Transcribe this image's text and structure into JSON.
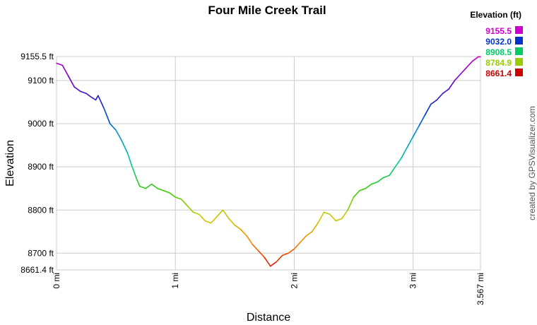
{
  "chart_data": {
    "type": "line",
    "title": "Four Mile Creek Trail",
    "xlabel": "Distance",
    "ylabel": "Elevation",
    "xlim": [
      0,
      3.567
    ],
    "ylim": [
      8661.4,
      9155.5
    ],
    "x_ticks": [
      {
        "value": 0,
        "label": "0 mi"
      },
      {
        "value": 1,
        "label": "1 mi"
      },
      {
        "value": 2,
        "label": "2 mi"
      },
      {
        "value": 3,
        "label": "3 mi"
      },
      {
        "value": 3.567,
        "label": "3.567 mi"
      }
    ],
    "y_ticks": [
      {
        "value": 8661.4,
        "label": "8661.4 ft"
      },
      {
        "value": 8700,
        "label": "8700 ft"
      },
      {
        "value": 8800,
        "label": "8800 ft"
      },
      {
        "value": 8900,
        "label": "8900 ft"
      },
      {
        "value": 9000,
        "label": "9000 ft"
      },
      {
        "value": 9100,
        "label": "9100 ft"
      },
      {
        "value": 9155.5,
        "label": "9155.5 ft"
      }
    ],
    "grid": true,
    "legend": {
      "title": "Elevation (ft)",
      "placement": "top-right",
      "entries": [
        {
          "label": "9155.5",
          "color": "#cc00cc"
        },
        {
          "label": "9032.0",
          "color": "#0033cc"
        },
        {
          "label": "8908.5",
          "color": "#00cc66"
        },
        {
          "label": "8784.9",
          "color": "#99cc00"
        },
        {
          "label": "8661.4",
          "color": "#cc0000"
        }
      ]
    },
    "color_scale": {
      "min": 8661.4,
      "max": 9155.5,
      "stops": [
        "#cc0000",
        "#ff8000",
        "#cccc00",
        "#33cc00",
        "#00cc99",
        "#0099cc",
        "#0033cc",
        "#6600cc",
        "#cc00cc"
      ]
    },
    "series": [
      {
        "x": [
          0,
          0.05,
          0.1,
          0.15,
          0.2,
          0.25,
          0.3,
          0.33,
          0.35,
          0.4,
          0.45,
          0.5,
          0.55,
          0.6,
          0.63,
          0.65,
          0.67,
          0.7,
          0.75,
          0.8,
          0.85,
          0.9,
          0.95,
          1.0,
          1.05,
          1.1,
          1.15,
          1.2,
          1.25,
          1.3,
          1.35,
          1.4,
          1.45,
          1.5,
          1.55,
          1.6,
          1.65,
          1.7,
          1.75,
          1.8,
          1.85,
          1.9,
          1.95,
          2.0,
          2.05,
          2.1,
          2.15,
          2.2,
          2.25,
          2.3,
          2.35,
          2.4,
          2.45,
          2.5,
          2.55,
          2.6,
          2.65,
          2.7,
          2.75,
          2.8,
          2.85,
          2.9,
          2.95,
          3.0,
          3.05,
          3.1,
          3.15,
          3.2,
          3.25,
          3.3,
          3.35,
          3.4,
          3.45,
          3.5,
          3.55,
          3.567
        ],
        "y": [
          9140,
          9135,
          9110,
          9085,
          9075,
          9070,
          9060,
          9055,
          9065,
          9035,
          9000,
          8985,
          8960,
          8930,
          8905,
          8890,
          8875,
          8855,
          8850,
          8860,
          8850,
          8845,
          8840,
          8830,
          8825,
          8810,
          8795,
          8790,
          8775,
          8770,
          8785,
          8800,
          8780,
          8765,
          8755,
          8740,
          8720,
          8705,
          8690,
          8670,
          8680,
          8695,
          8700,
          8710,
          8725,
          8740,
          8750,
          8770,
          8795,
          8790,
          8775,
          8780,
          8800,
          8830,
          8845,
          8850,
          8860,
          8865,
          8875,
          8880,
          8900,
          8920,
          8945,
          8970,
          8995,
          9020,
          9045,
          9055,
          9070,
          9080,
          9100,
          9115,
          9130,
          9145,
          9155,
          9155
        ]
      }
    ]
  },
  "credit": "created by GPSVisualizer.com"
}
